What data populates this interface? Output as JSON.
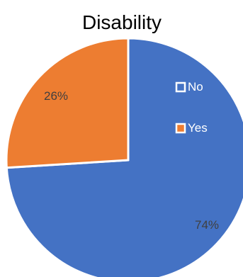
{
  "chart_data": {
    "type": "pie",
    "title": "Disability",
    "slices": [
      {
        "label": "No",
        "value": 74,
        "display": "74%",
        "color": "#4472C4"
      },
      {
        "label": "Yes",
        "value": 26,
        "display": "26%",
        "color": "#ED7D31"
      }
    ],
    "legend": {
      "placement": "right",
      "items": [
        {
          "label": "No",
          "color": "#4472C4"
        },
        {
          "label": "Yes",
          "color": "#ED7D31"
        }
      ]
    }
  }
}
